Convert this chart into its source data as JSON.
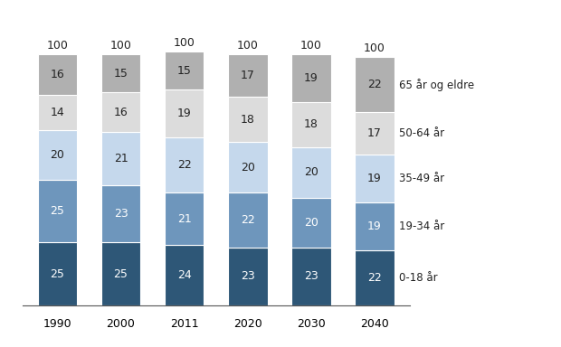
{
  "years": [
    "1990",
    "2000",
    "2011",
    "2020",
    "2030",
    "2040"
  ],
  "categories": [
    "0-18 år",
    "19-34 år",
    "35-49 år",
    "50-64 år",
    "65 år og eldre"
  ],
  "values": {
    "0-18 år": [
      25,
      25,
      24,
      23,
      23,
      22
    ],
    "19-34 år": [
      25,
      23,
      21,
      22,
      20,
      19
    ],
    "35-49 år": [
      20,
      21,
      22,
      20,
      20,
      19
    ],
    "50-64 år": [
      14,
      16,
      19,
      18,
      18,
      17
    ],
    "65 år og eldre": [
      16,
      15,
      15,
      17,
      19,
      22
    ]
  },
  "colors": {
    "0-18 år": "#2e5777",
    "19-34 år": "#6e96bc",
    "35-49 år": "#c5d8ec",
    "50-64 år": "#dcdcdc",
    "65 år og eldre": "#b0b0b0"
  },
  "totals": [
    100,
    100,
    100,
    100,
    100,
    100
  ],
  "bar_width": 0.62,
  "figsize": [
    6.2,
    3.84
  ],
  "dpi": 100,
  "background_color": "#ffffff",
  "text_color_dark": "#222222",
  "text_color_light": "#ffffff",
  "label_fontsize": 9,
  "tick_fontsize": 9,
  "legend_fontsize": 8.5
}
